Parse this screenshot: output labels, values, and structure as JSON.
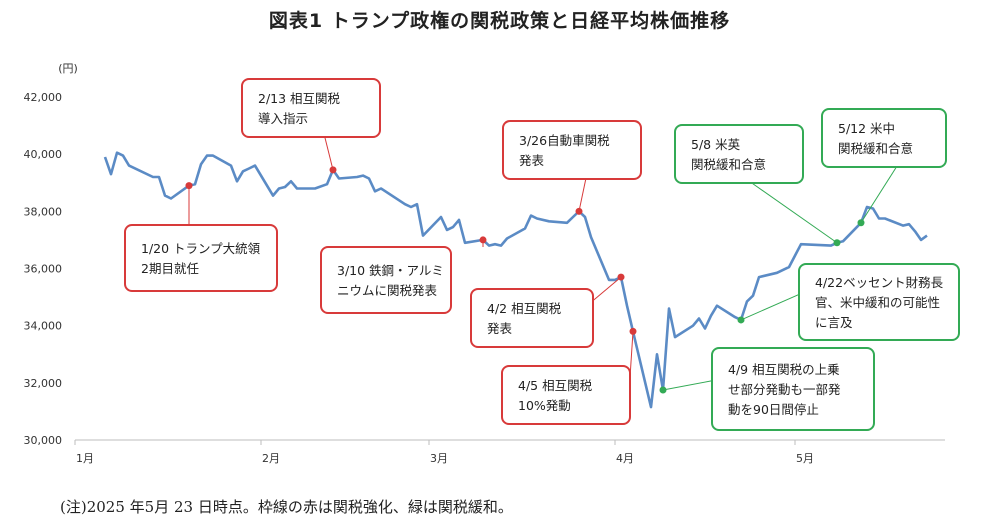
{
  "title": "図表1 トランプ政権の関税政策と日経平均株価推移",
  "note": "(注)2025 年5月 23 日時点。枠線の赤は関税強化、緑は関税緩和。",
  "colors": {
    "line": "#5b8bc5",
    "tighten": "#d83a3a",
    "ease": "#33aa55",
    "grid": "#e6e6e6"
  },
  "chart_data": {
    "type": "line",
    "title": "図表1 トランプ政権の関税政策と日経平均株価推移",
    "ylabel": "(円)",
    "xlabel": "",
    "x_ticks": [
      "1月",
      "2月",
      "3月",
      "4月",
      "5月"
    ],
    "x_tick_dates": [
      "2025-01-01",
      "2025-02-01",
      "2025-03-01",
      "2025-04-01",
      "2025-05-01"
    ],
    "xlim": [
      "2025-01-01",
      "2025-05-26"
    ],
    "y_ticks": [
      "42,000",
      "40,000",
      "38,000",
      "36,000",
      "34,000",
      "32,000",
      "30,000"
    ],
    "y_tick_values": [
      42000,
      40000,
      38000,
      36000,
      34000,
      32000,
      30000
    ],
    "ylim": [
      30000,
      42000
    ],
    "grid": false,
    "legend": "none",
    "series": [
      {
        "points": [
          [
            "2025-01-06",
            39900
          ],
          [
            "2025-01-07",
            39300
          ],
          [
            "2025-01-08",
            40050
          ],
          [
            "2025-01-09",
            39950
          ],
          [
            "2025-01-10",
            39600
          ],
          [
            "2025-01-14",
            39200
          ],
          [
            "2025-01-15",
            39200
          ],
          [
            "2025-01-16",
            38550
          ],
          [
            "2025-01-17",
            38450
          ],
          [
            "2025-01-20",
            38900
          ],
          [
            "2025-01-21",
            38950
          ],
          [
            "2025-01-22",
            39650
          ],
          [
            "2025-01-23",
            39950
          ],
          [
            "2025-01-24",
            39950
          ],
          [
            "2025-01-27",
            39600
          ],
          [
            "2025-01-28",
            39050
          ],
          [
            "2025-01-29",
            39400
          ],
          [
            "2025-01-30",
            39500
          ],
          [
            "2025-01-31",
            39600
          ],
          [
            "2025-02-03",
            38550
          ],
          [
            "2025-02-04",
            38800
          ],
          [
            "2025-02-05",
            38850
          ],
          [
            "2025-02-06",
            39050
          ],
          [
            "2025-02-07",
            38800
          ],
          [
            "2025-02-10",
            38800
          ],
          [
            "2025-02-12",
            38950
          ],
          [
            "2025-02-13",
            39450
          ],
          [
            "2025-02-14",
            39150
          ],
          [
            "2025-02-17",
            39200
          ],
          [
            "2025-02-18",
            39250
          ],
          [
            "2025-02-19",
            39150
          ],
          [
            "2025-02-20",
            38700
          ],
          [
            "2025-02-21",
            38800
          ],
          [
            "2025-02-25",
            38250
          ],
          [
            "2025-02-26",
            38150
          ],
          [
            "2025-02-27",
            38250
          ],
          [
            "2025-02-28",
            37150
          ],
          [
            "2025-03-03",
            37800
          ],
          [
            "2025-03-04",
            37350
          ],
          [
            "2025-03-05",
            37450
          ],
          [
            "2025-03-06",
            37700
          ],
          [
            "2025-03-07",
            36900
          ],
          [
            "2025-03-10",
            37000
          ],
          [
            "2025-03-11",
            36800
          ],
          [
            "2025-03-12",
            36850
          ],
          [
            "2025-03-13",
            36800
          ],
          [
            "2025-03-14",
            37050
          ],
          [
            "2025-03-17",
            37400
          ],
          [
            "2025-03-18",
            37850
          ],
          [
            "2025-03-19",
            37750
          ],
          [
            "2025-03-21",
            37650
          ],
          [
            "2025-03-24",
            37600
          ],
          [
            "2025-03-25",
            37800
          ],
          [
            "2025-03-26",
            38000
          ],
          [
            "2025-03-27",
            37800
          ],
          [
            "2025-03-28",
            37100
          ],
          [
            "2025-03-31",
            35600
          ],
          [
            "2025-04-01",
            35600
          ],
          [
            "2025-04-02",
            35700
          ],
          [
            "2025-04-03",
            34700
          ],
          [
            "2025-04-04",
            33800
          ],
          [
            "2025-04-07",
            31150
          ],
          [
            "2025-04-08",
            33000
          ],
          [
            "2025-04-09",
            31750
          ],
          [
            "2025-04-10",
            34600
          ],
          [
            "2025-04-11",
            33600
          ],
          [
            "2025-04-14",
            34000
          ],
          [
            "2025-04-15",
            34250
          ],
          [
            "2025-04-16",
            33900
          ],
          [
            "2025-04-17",
            34350
          ],
          [
            "2025-04-18",
            34700
          ],
          [
            "2025-04-21",
            34300
          ],
          [
            "2025-04-22",
            34200
          ],
          [
            "2025-04-23",
            34850
          ],
          [
            "2025-04-24",
            35050
          ],
          [
            "2025-04-25",
            35700
          ],
          [
            "2025-04-28",
            35850
          ],
          [
            "2025-04-30",
            36050
          ],
          [
            "2025-05-01",
            36450
          ],
          [
            "2025-05-02",
            36850
          ],
          [
            "2025-05-07",
            36800
          ],
          [
            "2025-05-08",
            36900
          ],
          [
            "2025-05-09",
            36950
          ],
          [
            "2025-05-12",
            37600
          ],
          [
            "2025-05-13",
            38150
          ],
          [
            "2025-05-14",
            38100
          ],
          [
            "2025-05-15",
            37750
          ],
          [
            "2025-05-16",
            37750
          ],
          [
            "2025-05-19",
            37500
          ],
          [
            "2025-05-20",
            37550
          ],
          [
            "2025-05-21",
            37300
          ],
          [
            "2025-05-22",
            37000
          ],
          [
            "2025-05-23",
            37150
          ]
        ]
      }
    ],
    "annotations": [
      {
        "kind": "tighten",
        "date": "2025-01-20",
        "value": 38900,
        "lines": [
          "1/20 トランプ大統領",
          "2期目就任"
        ]
      },
      {
        "kind": "tighten",
        "date": "2025-02-13",
        "value": 39450,
        "lines": [
          "2/13 相互関税",
          "導入指示"
        ]
      },
      {
        "kind": "tighten",
        "date": "2025-03-10",
        "value": 37000,
        "lines": [
          "3/10 鉄鋼・アルミ",
          "ニウムに関税発表"
        ]
      },
      {
        "kind": "tighten",
        "date": "2025-03-26",
        "value": 38000,
        "lines": [
          "3/26自動車関税",
          "発表"
        ]
      },
      {
        "kind": "tighten",
        "date": "2025-04-02",
        "value": 35700,
        "lines": [
          "4/2 相互関税",
          "発表"
        ]
      },
      {
        "kind": "tighten",
        "date": "2025-04-04",
        "value": 33800,
        "lines": [
          "4/5 相互関税",
          "10%発動"
        ]
      },
      {
        "kind": "ease",
        "date": "2025-04-09",
        "value": 31750,
        "lines": [
          "4/9 相互関税の上乗",
          "せ部分発動も一部発",
          "動を90日間停止"
        ]
      },
      {
        "kind": "ease",
        "date": "2025-04-22",
        "value": 34200,
        "lines": [
          "4/22ベッセント財務長",
          "官、米中緩和の可能性",
          "に言及"
        ]
      },
      {
        "kind": "ease",
        "date": "2025-05-08",
        "value": 36900,
        "lines": [
          "5/8 米英",
          "関税緩和合意"
        ]
      },
      {
        "kind": "ease",
        "date": "2025-05-12",
        "value": 37600,
        "lines": [
          "5/12 米中",
          "関税緩和合意"
        ]
      }
    ]
  }
}
